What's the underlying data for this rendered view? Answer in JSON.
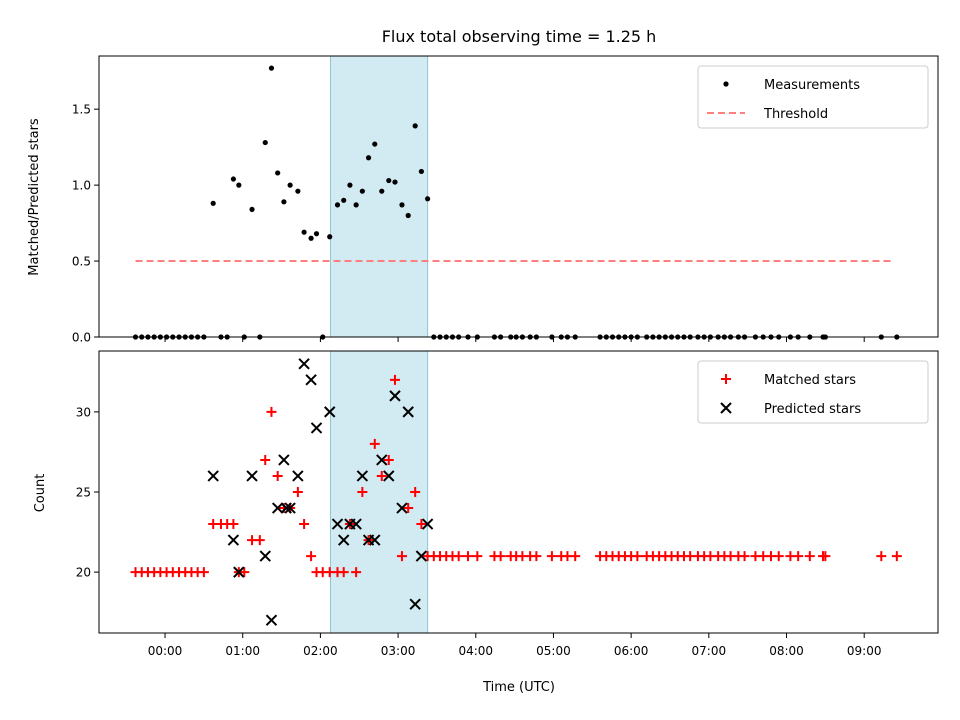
{
  "chart_data": {
    "title": "Flux total observing time = 1.25 h",
    "xlabel": "Time (UTC)",
    "x_unit": "hours (UTC)",
    "xlim": [
      -0.85,
      9.95
    ],
    "x_ticks": [
      {
        "value": 0,
        "label": "00:00"
      },
      {
        "value": 1,
        "label": "01:00"
      },
      {
        "value": 2,
        "label": "02:00"
      },
      {
        "value": 3,
        "label": "03:00"
      },
      {
        "value": 4,
        "label": "04:00"
      },
      {
        "value": 5,
        "label": "05:00"
      },
      {
        "value": 6,
        "label": "06:00"
      },
      {
        "value": 7,
        "label": "07:00"
      },
      {
        "value": 8,
        "label": "08:00"
      },
      {
        "value": 9,
        "label": "09:00"
      }
    ],
    "shaded_span": {
      "start": 2.13,
      "end": 3.38,
      "color": "#add8e6"
    },
    "panels": [
      {
        "type": "scatter",
        "ylabel": "Matched/Predicted stars",
        "ylim": [
          0,
          1.85
        ],
        "y_ticks": [
          {
            "value": 0,
            "label": "0.0"
          },
          {
            "value": 0.5,
            "label": "0.5"
          },
          {
            "value": 1.0,
            "label": "1.0"
          },
          {
            "value": 1.5,
            "label": "1.5"
          }
        ],
        "legend": [
          {
            "label": "Measurements",
            "marker": "dot",
            "color": "#000000"
          },
          {
            "label": "Threshold",
            "marker": "dashed-line",
            "color": "#ff7f7f"
          }
        ],
        "threshold": {
          "value": 0.5,
          "x_start": -0.38,
          "x_end": 9.35,
          "color": "#ff7f7f"
        },
        "measurements": [
          [
            -0.38,
            0
          ],
          [
            -0.3,
            0
          ],
          [
            -0.22,
            0
          ],
          [
            -0.14,
            0
          ],
          [
            -0.06,
            0
          ],
          [
            0.02,
            0
          ],
          [
            0.1,
            0
          ],
          [
            0.18,
            0
          ],
          [
            0.26,
            0
          ],
          [
            0.34,
            0
          ],
          [
            0.42,
            0
          ],
          [
            0.5,
            0
          ],
          [
            0.62,
            0.88
          ],
          [
            0.72,
            0
          ],
          [
            0.8,
            0
          ],
          [
            0.88,
            1.04
          ],
          [
            0.95,
            1.0
          ],
          [
            1.02,
            0
          ],
          [
            1.12,
            0.84
          ],
          [
            1.22,
            0
          ],
          [
            1.29,
            1.28
          ],
          [
            1.37,
            1.77
          ],
          [
            1.45,
            1.08
          ],
          [
            1.53,
            0.89
          ],
          [
            1.61,
            1.0
          ],
          [
            1.71,
            0.96
          ],
          [
            1.79,
            0.69
          ],
          [
            1.88,
            0.65
          ],
          [
            1.95,
            0.68
          ],
          [
            2.03,
            0
          ],
          [
            2.12,
            0.66
          ],
          [
            2.22,
            0.87
          ],
          [
            2.3,
            0.9
          ],
          [
            2.38,
            1.0
          ],
          [
            2.46,
            0.87
          ],
          [
            2.54,
            0.96
          ],
          [
            2.62,
            1.18
          ],
          [
            2.7,
            1.27
          ],
          [
            2.79,
            0.96
          ],
          [
            2.88,
            1.03
          ],
          [
            2.96,
            1.02
          ],
          [
            3.05,
            0.87
          ],
          [
            3.13,
            0.8
          ],
          [
            3.22,
            1.39
          ],
          [
            3.3,
            1.09
          ],
          [
            3.38,
            0.91
          ],
          [
            3.46,
            0
          ],
          [
            3.54,
            0
          ],
          [
            3.62,
            0
          ],
          [
            3.7,
            0
          ],
          [
            3.78,
            0
          ],
          [
            3.9,
            0
          ],
          [
            4.02,
            0
          ],
          [
            4.24,
            0
          ],
          [
            4.32,
            0
          ],
          [
            4.45,
            0
          ],
          [
            4.52,
            0
          ],
          [
            4.6,
            0
          ],
          [
            4.7,
            0
          ],
          [
            4.78,
            0
          ],
          [
            4.98,
            0
          ],
          [
            5.1,
            0
          ],
          [
            5.18,
            0
          ],
          [
            5.28,
            0
          ],
          [
            5.6,
            0
          ],
          [
            5.68,
            0
          ],
          [
            5.76,
            0
          ],
          [
            5.84,
            0
          ],
          [
            5.92,
            0
          ],
          [
            6.0,
            0
          ],
          [
            6.08,
            0
          ],
          [
            6.2,
            0
          ],
          [
            6.28,
            0
          ],
          [
            6.36,
            0
          ],
          [
            6.44,
            0
          ],
          [
            6.52,
            0
          ],
          [
            6.6,
            0
          ],
          [
            6.68,
            0
          ],
          [
            6.76,
            0
          ],
          [
            6.86,
            0
          ],
          [
            6.94,
            0
          ],
          [
            7.02,
            0
          ],
          [
            7.12,
            0
          ],
          [
            7.2,
            0
          ],
          [
            7.28,
            0
          ],
          [
            7.38,
            0
          ],
          [
            7.46,
            0
          ],
          [
            7.6,
            0
          ],
          [
            7.7,
            0
          ],
          [
            7.8,
            0
          ],
          [
            7.9,
            0
          ],
          [
            8.05,
            0
          ],
          [
            8.15,
            0
          ],
          [
            8.3,
            0
          ],
          [
            8.47,
            0
          ],
          [
            8.5,
            0
          ],
          [
            9.22,
            0
          ],
          [
            9.42,
            0
          ]
        ]
      },
      {
        "type": "scatter",
        "ylabel": "Count",
        "ylim": [
          16.2,
          33.8
        ],
        "y_ticks": [
          {
            "value": 20,
            "label": "20"
          },
          {
            "value": 25,
            "label": "25"
          },
          {
            "value": 30,
            "label": "30"
          }
        ],
        "legend": [
          {
            "label": "Matched stars",
            "marker": "plus",
            "color": "#ff0000"
          },
          {
            "label": "Predicted stars",
            "marker": "x",
            "color": "#000000"
          }
        ],
        "matched": [
          [
            -0.38,
            20
          ],
          [
            -0.3,
            20
          ],
          [
            -0.22,
            20
          ],
          [
            -0.14,
            20
          ],
          [
            -0.06,
            20
          ],
          [
            0.02,
            20
          ],
          [
            0.1,
            20
          ],
          [
            0.18,
            20
          ],
          [
            0.26,
            20
          ],
          [
            0.34,
            20
          ],
          [
            0.42,
            20
          ],
          [
            0.5,
            20
          ],
          [
            0.62,
            23
          ],
          [
            0.72,
            23
          ],
          [
            0.8,
            23
          ],
          [
            0.88,
            23
          ],
          [
            0.95,
            20
          ],
          [
            1.02,
            20
          ],
          [
            1.12,
            22
          ],
          [
            1.22,
            22
          ],
          [
            1.29,
            27
          ],
          [
            1.37,
            30
          ],
          [
            1.45,
            26
          ],
          [
            1.53,
            24
          ],
          [
            1.61,
            24
          ],
          [
            1.71,
            25
          ],
          [
            1.79,
            23
          ],
          [
            1.88,
            21
          ],
          [
            1.95,
            20
          ],
          [
            2.03,
            20
          ],
          [
            2.12,
            20
          ],
          [
            2.22,
            20
          ],
          [
            2.3,
            20
          ],
          [
            2.38,
            23
          ],
          [
            2.46,
            20
          ],
          [
            2.54,
            25
          ],
          [
            2.62,
            22
          ],
          [
            2.7,
            28
          ],
          [
            2.79,
            26
          ],
          [
            2.88,
            27
          ],
          [
            2.96,
            32
          ],
          [
            3.05,
            21
          ],
          [
            3.13,
            24
          ],
          [
            3.22,
            25
          ],
          [
            3.3,
            23
          ],
          [
            3.38,
            21
          ],
          [
            3.46,
            21
          ],
          [
            3.54,
            21
          ],
          [
            3.62,
            21
          ],
          [
            3.7,
            21
          ],
          [
            3.78,
            21
          ],
          [
            3.9,
            21
          ],
          [
            4.02,
            21
          ],
          [
            4.24,
            21
          ],
          [
            4.32,
            21
          ],
          [
            4.45,
            21
          ],
          [
            4.52,
            21
          ],
          [
            4.6,
            21
          ],
          [
            4.7,
            21
          ],
          [
            4.78,
            21
          ],
          [
            4.98,
            21
          ],
          [
            5.1,
            21
          ],
          [
            5.18,
            21
          ],
          [
            5.28,
            21
          ],
          [
            5.6,
            21
          ],
          [
            5.68,
            21
          ],
          [
            5.76,
            21
          ],
          [
            5.84,
            21
          ],
          [
            5.92,
            21
          ],
          [
            6.0,
            21
          ],
          [
            6.08,
            21
          ],
          [
            6.2,
            21
          ],
          [
            6.28,
            21
          ],
          [
            6.36,
            21
          ],
          [
            6.44,
            21
          ],
          [
            6.52,
            21
          ],
          [
            6.6,
            21
          ],
          [
            6.68,
            21
          ],
          [
            6.76,
            21
          ],
          [
            6.86,
            21
          ],
          [
            6.94,
            21
          ],
          [
            7.02,
            21
          ],
          [
            7.12,
            21
          ],
          [
            7.2,
            21
          ],
          [
            7.28,
            21
          ],
          [
            7.38,
            21
          ],
          [
            7.46,
            21
          ],
          [
            7.6,
            21
          ],
          [
            7.7,
            21
          ],
          [
            7.8,
            21
          ],
          [
            7.9,
            21
          ],
          [
            8.05,
            21
          ],
          [
            8.15,
            21
          ],
          [
            8.3,
            21
          ],
          [
            8.47,
            21
          ],
          [
            8.5,
            21
          ],
          [
            9.22,
            21
          ],
          [
            9.42,
            21
          ]
        ],
        "predicted": [
          [
            0.62,
            26
          ],
          [
            0.88,
            22
          ],
          [
            0.95,
            20
          ],
          [
            1.12,
            26
          ],
          [
            1.29,
            21
          ],
          [
            1.37,
            17
          ],
          [
            1.45,
            24
          ],
          [
            1.53,
            27
          ],
          [
            1.56,
            24
          ],
          [
            1.61,
            24
          ],
          [
            1.71,
            26
          ],
          [
            1.79,
            33
          ],
          [
            1.88,
            32
          ],
          [
            1.95,
            29
          ],
          [
            2.12,
            30
          ],
          [
            2.22,
            23
          ],
          [
            2.3,
            22
          ],
          [
            2.38,
            23
          ],
          [
            2.46,
            23
          ],
          [
            2.54,
            26
          ],
          [
            2.62,
            22
          ],
          [
            2.7,
            22
          ],
          [
            2.79,
            27
          ],
          [
            2.88,
            26
          ],
          [
            2.96,
            31
          ],
          [
            3.05,
            24
          ],
          [
            3.13,
            30
          ],
          [
            3.22,
            18
          ],
          [
            3.3,
            21
          ],
          [
            3.38,
            23
          ]
        ]
      }
    ]
  }
}
